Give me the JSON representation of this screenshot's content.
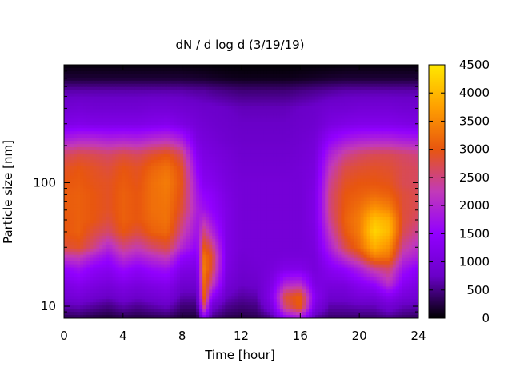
{
  "chart_data": {
    "type": "heatmap",
    "title": "dN / d log d (3/19/19)",
    "xlabel": "Time [hour]",
    "ylabel": "Particle size [nm]",
    "x_ticks": [
      0,
      4,
      8,
      12,
      16,
      20,
      24
    ],
    "y_ticks": [
      10,
      100
    ],
    "y_scale": "log",
    "xlim": [
      0,
      24
    ],
    "ylim": [
      8,
      900
    ],
    "colorbar": {
      "ticks": [
        0,
        500,
        1000,
        1500,
        2000,
        2500,
        3000,
        3500,
        4000,
        4500
      ],
      "range": [
        0,
        4500
      ],
      "colormap": [
        "#000000",
        "#6a00c8",
        "#9200ff",
        "#c23ab8",
        "#e8560f",
        "#ffa000",
        "#ffe800"
      ]
    },
    "x_hours": [
      0,
      1,
      2,
      3,
      4,
      5,
      6,
      7,
      8,
      9,
      9.5,
      10,
      11,
      12,
      13,
      14,
      15,
      16,
      17,
      18,
      19,
      20,
      21,
      22,
      23,
      24
    ],
    "y_sizes_nm": [
      8,
      10,
      12,
      15,
      20,
      25,
      30,
      40,
      50,
      60,
      80,
      100,
      130,
      170,
      220,
      300,
      400,
      550,
      700,
      900
    ],
    "values": [
      [
        300,
        350,
        250,
        200,
        300,
        250,
        300,
        350,
        200,
        200,
        1200,
        500,
        300,
        250,
        300,
        500,
        1500,
        1800,
        600,
        400,
        400,
        400,
        400,
        500,
        400,
        350
      ],
      [
        650,
        700,
        600,
        500,
        650,
        550,
        650,
        750,
        450,
        450,
        2600,
        900,
        550,
        450,
        500,
        1000,
        2600,
        3100,
        1100,
        650,
        650,
        700,
        700,
        900,
        700,
        650
      ],
      [
        900,
        1000,
        850,
        750,
        900,
        800,
        900,
        1000,
        650,
        650,
        3100,
        1500,
        750,
        600,
        650,
        1200,
        2800,
        3100,
        1300,
        850,
        850,
        1000,
        1000,
        1300,
        1000,
        900
      ],
      [
        1100,
        1250,
        1100,
        1000,
        1150,
        1050,
        1150,
        1250,
        850,
        850,
        3200,
        2300,
        950,
        750,
        800,
        1100,
        2000,
        2100,
        1100,
        1050,
        1050,
        1300,
        1500,
        2100,
        1300,
        1100
      ],
      [
        1500,
        1700,
        1400,
        1300,
        1600,
        1400,
        1600,
        1700,
        1150,
        1100,
        3400,
        2800,
        1100,
        850,
        900,
        1000,
        1200,
        1200,
        1000,
        1300,
        1500,
        1900,
        2400,
        2600,
        1700,
        1400
      ],
      [
        2200,
        2300,
        1900,
        1600,
        2100,
        1900,
        2100,
        2300,
        1500,
        1300,
        3300,
        2900,
        1150,
        900,
        950,
        950,
        1000,
        1000,
        1000,
        1600,
        2200,
        2700,
        3400,
        3300,
        2100,
        1900
      ],
      [
        2800,
        2900,
        2500,
        2000,
        2500,
        2300,
        2600,
        2800,
        2000,
        1500,
        3000,
        2600,
        1150,
        950,
        950,
        950,
        950,
        950,
        1050,
        1900,
        2700,
        3200,
        3900,
        3600,
        2400,
        2100
      ],
      [
        3000,
        3100,
        2800,
        2600,
        3000,
        2800,
        3100,
        3200,
        2400,
        1700,
        2500,
        2000,
        1150,
        950,
        950,
        950,
        950,
        950,
        1100,
        2200,
        3000,
        3400,
        4300,
        4000,
        2700,
        2400
      ],
      [
        3000,
        3100,
        3000,
        2800,
        3100,
        3000,
        3200,
        3300,
        2600,
        1800,
        2100,
        1700,
        1150,
        950,
        950,
        950,
        950,
        950,
        1150,
        2400,
        3100,
        3400,
        4100,
        3900,
        2800,
        2600
      ],
      [
        3050,
        3100,
        3000,
        2900,
        3100,
        3000,
        3250,
        3300,
        2800,
        1900,
        1700,
        1500,
        1150,
        950,
        950,
        950,
        950,
        950,
        1150,
        2500,
        3050,
        3300,
        3700,
        3500,
        2800,
        2700
      ],
      [
        3050,
        3100,
        3000,
        2900,
        3100,
        3000,
        3250,
        3350,
        2900,
        1800,
        1500,
        1400,
        1100,
        950,
        950,
        950,
        950,
        950,
        1150,
        2500,
        3000,
        3100,
        3200,
        3100,
        2800,
        2700
      ],
      [
        3000,
        3050,
        2950,
        2900,
        3050,
        2950,
        3250,
        3400,
        2950,
        1700,
        1300,
        1250,
        1050,
        950,
        950,
        950,
        950,
        950,
        1100,
        2400,
        2900,
        3000,
        3000,
        2950,
        2700,
        2650
      ],
      [
        2900,
        3000,
        2900,
        2800,
        3000,
        2900,
        3150,
        3300,
        2900,
        1500,
        1200,
        1150,
        1000,
        900,
        900,
        900,
        900,
        950,
        1050,
        2200,
        2750,
        2850,
        2900,
        2850,
        2700,
        2650
      ],
      [
        2600,
        2750,
        2700,
        2600,
        2750,
        2650,
        2850,
        3000,
        2600,
        1300,
        1100,
        1050,
        950,
        850,
        850,
        850,
        850,
        900,
        1000,
        1900,
        2400,
        2600,
        2700,
        2700,
        2600,
        2500
      ],
      [
        1900,
        2050,
        2050,
        1950,
        2000,
        1950,
        2100,
        2200,
        1900,
        1100,
        1000,
        950,
        850,
        800,
        800,
        800,
        800,
        850,
        950,
        1500,
        1800,
        1950,
        2000,
        2000,
        1900,
        1850
      ],
      [
        1150,
        1200,
        1150,
        1150,
        1150,
        1150,
        1200,
        1250,
        1100,
        950,
        900,
        850,
        800,
        750,
        750,
        750,
        750,
        800,
        850,
        1050,
        1150,
        1200,
        1200,
        1200,
        1150,
        1100
      ],
      [
        900,
        950,
        900,
        900,
        900,
        900,
        950,
        950,
        900,
        850,
        800,
        800,
        750,
        700,
        700,
        700,
        700,
        750,
        800,
        900,
        900,
        950,
        950,
        950,
        900,
        900
      ],
      [
        650,
        650,
        650,
        650,
        650,
        650,
        650,
        650,
        650,
        600,
        600,
        550,
        500,
        450,
        450,
        450,
        450,
        500,
        550,
        600,
        650,
        650,
        650,
        650,
        650,
        650
      ],
      [
        200,
        200,
        200,
        200,
        200,
        200,
        200,
        200,
        200,
        180,
        170,
        150,
        120,
        100,
        100,
        100,
        100,
        120,
        150,
        180,
        200,
        200,
        200,
        200,
        200,
        200
      ],
      [
        40,
        40,
        40,
        40,
        40,
        40,
        40,
        40,
        40,
        30,
        30,
        25,
        20,
        15,
        15,
        15,
        15,
        20,
        25,
        30,
        40,
        40,
        40,
        40,
        40,
        40
      ]
    ]
  }
}
